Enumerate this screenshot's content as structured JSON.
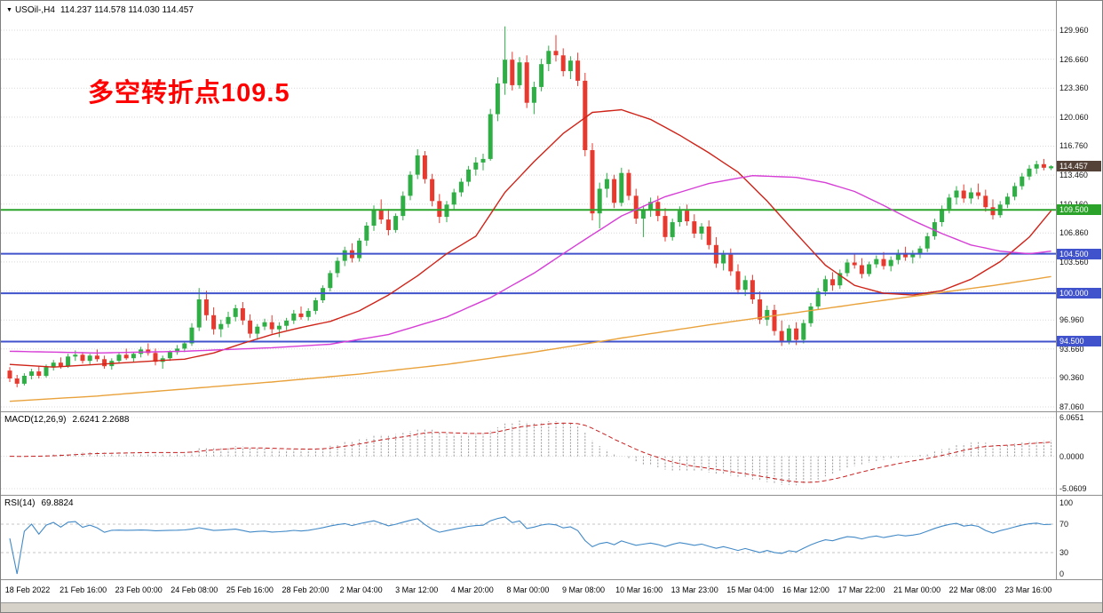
{
  "colors": {
    "up": "#2eae45",
    "down": "#e8392f",
    "ma_fast": "#cf2318",
    "ma_mid": "#d63ed6",
    "ma_slow": "#e9a23b",
    "level_green": "#2ba32b",
    "level_blue": "#4053cc",
    "grid": "#d8d8d8",
    "macd_hist": "#9a9a9a",
    "macd_signal": "#c81d1d",
    "rsi_line": "#4189c7",
    "rsi_levels": "#c4c4c4",
    "current_badge_bg": "#544238",
    "annotation": "#fe0000"
  },
  "window": {
    "dropdown_icon": "▼",
    "symbol_period": "USOil-,H4",
    "ohlc": "114.237 114.578 114.030 114.457"
  },
  "annotation": {
    "text": "多空转折点109.5"
  },
  "indicators": {
    "macd": {
      "label": "MACD(12,26,9)",
      "values": "2.6241 2.2688",
      "fast": 12,
      "slow": 26,
      "signal": 9,
      "axis_labels": [
        "6.0651",
        "0.0000",
        "-5.0609"
      ],
      "axis_values": [
        6.0651,
        0,
        -5.0609
      ]
    },
    "rsi": {
      "label": "RSI(14)",
      "value": "69.8824",
      "period": 14,
      "axis_labels": [
        "100",
        "70",
        "30",
        "0"
      ],
      "axis_values": [
        100,
        70,
        30,
        0
      ],
      "levels": [
        70,
        30
      ]
    }
  },
  "price_axis": {
    "grid_values": [
      87.06,
      90.36,
      93.66,
      96.96,
      100.26,
      103.56,
      106.86,
      110.16,
      113.46,
      116.76,
      120.06,
      123.36,
      126.66,
      129.96
    ],
    "current_price": "114.457"
  },
  "levels": [
    {
      "value": 109.5,
      "label": "109.500",
      "color_key": "level_green"
    },
    {
      "value": 104.5,
      "label": "104.500",
      "color_key": "level_blue"
    },
    {
      "value": 100.0,
      "label": "100.000",
      "color_key": "level_blue"
    },
    {
      "value": 94.5,
      "label": "94.500",
      "color_key": "level_blue"
    }
  ],
  "time_axis": {
    "labels": [
      "18 Feb 2022",
      "21 Feb 16:00",
      "23 Feb 00:00",
      "24 Feb 08:00",
      "25 Feb 16:00",
      "28 Feb 20:00",
      "2 Mar 04:00",
      "3 Mar 12:00",
      "4 Mar 20:00",
      "8 Mar 00:00",
      "9 Mar 08:00",
      "10 Mar 16:00",
      "13 Mar 23:00",
      "15 Mar 04:00",
      "16 Mar 12:00",
      "17 Mar 22:00",
      "21 Mar 00:00",
      "22 Mar 08:00",
      "23 Mar 16:00"
    ]
  },
  "chart_data": {
    "type": "candlestick",
    "symbol": "USOil-",
    "timeframe": "H4",
    "title": "USOil-,H4",
    "y_range": [
      86.5,
      133.3
    ],
    "macd_range": [
      -5.0609,
      6.0651
    ],
    "rsi_range": [
      0,
      100
    ],
    "horizontal_levels": [
      109.5,
      104.5,
      100.0,
      94.5
    ],
    "candles": [
      [
        91.2,
        91.6,
        89.9,
        90.3
      ],
      [
        90.3,
        90.7,
        89.3,
        89.7
      ],
      [
        89.7,
        90.9,
        89.5,
        90.6
      ],
      [
        90.6,
        91.4,
        90.2,
        91.1
      ],
      [
        91.1,
        91.7,
        90.3,
        90.6
      ],
      [
        90.6,
        91.9,
        90.4,
        91.6
      ],
      [
        91.6,
        92.4,
        91.2,
        92.1
      ],
      [
        92.1,
        92.7,
        91.4,
        91.7
      ],
      [
        91.7,
        93.1,
        91.5,
        92.8
      ],
      [
        92.8,
        93.5,
        92.3,
        93.0
      ],
      [
        93.0,
        93.3,
        92.0,
        92.3
      ],
      [
        92.3,
        93.1,
        91.9,
        92.9
      ],
      [
        92.9,
        93.6,
        92.2,
        92.5
      ],
      [
        92.5,
        92.9,
        91.4,
        91.7
      ],
      [
        91.7,
        92.6,
        91.3,
        92.3
      ],
      [
        92.3,
        93.2,
        92.0,
        93.0
      ],
      [
        93.0,
        93.7,
        92.4,
        92.6
      ],
      [
        92.6,
        93.3,
        92.2,
        93.1
      ],
      [
        93.1,
        93.9,
        92.7,
        93.6
      ],
      [
        93.6,
        94.3,
        92.9,
        93.2
      ],
      [
        93.2,
        93.7,
        91.8,
        92.2
      ],
      [
        92.2,
        92.9,
        91.4,
        92.6
      ],
      [
        92.6,
        93.5,
        92.3,
        93.3
      ],
      [
        93.3,
        94.1,
        93.0,
        93.7
      ],
      [
        93.7,
        94.6,
        93.3,
        94.3
      ],
      [
        94.3,
        96.6,
        94.0,
        96.1
      ],
      [
        96.1,
        100.6,
        95.7,
        99.3
      ],
      [
        99.3,
        100.3,
        96.9,
        97.5
      ],
      [
        97.5,
        98.4,
        95.3,
        95.9
      ],
      [
        95.9,
        97.0,
        95.0,
        96.5
      ],
      [
        96.5,
        97.9,
        96.1,
        97.3
      ],
      [
        97.3,
        98.7,
        96.8,
        98.3
      ],
      [
        98.3,
        99.0,
        96.4,
        96.9
      ],
      [
        96.9,
        97.6,
        94.9,
        95.4
      ],
      [
        95.4,
        96.5,
        94.7,
        96.2
      ],
      [
        96.2,
        97.1,
        95.8,
        96.7
      ],
      [
        96.7,
        97.5,
        95.4,
        95.9
      ],
      [
        95.9,
        96.7,
        95.0,
        96.3
      ],
      [
        96.3,
        97.2,
        95.8,
        96.9
      ],
      [
        96.9,
        98.1,
        96.5,
        97.7
      ],
      [
        97.7,
        98.5,
        97.0,
        97.3
      ],
      [
        97.3,
        98.3,
        96.9,
        98.0
      ],
      [
        98.0,
        99.5,
        97.6,
        99.2
      ],
      [
        99.2,
        100.9,
        98.9,
        100.6
      ],
      [
        100.6,
        102.6,
        100.2,
        102.3
      ],
      [
        102.3,
        104.1,
        101.8,
        103.7
      ],
      [
        103.7,
        105.3,
        103.1,
        104.9
      ],
      [
        104.9,
        105.7,
        103.5,
        104.0
      ],
      [
        104.0,
        106.3,
        103.6,
        106.0
      ],
      [
        106.0,
        108.1,
        105.4,
        107.7
      ],
      [
        107.7,
        110.0,
        107.1,
        109.5
      ],
      [
        109.5,
        110.7,
        107.9,
        108.4
      ],
      [
        108.4,
        109.6,
        106.6,
        107.2
      ],
      [
        107.2,
        109.1,
        106.9,
        108.8
      ],
      [
        108.8,
        111.6,
        108.3,
        111.1
      ],
      [
        111.1,
        113.9,
        110.6,
        113.5
      ],
      [
        113.5,
        116.4,
        113.0,
        115.7
      ],
      [
        115.7,
        116.2,
        112.5,
        113.0
      ],
      [
        113.0,
        113.6,
        109.9,
        110.5
      ],
      [
        110.5,
        111.3,
        108.0,
        108.7
      ],
      [
        108.7,
        110.5,
        108.1,
        110.1
      ],
      [
        110.1,
        111.9,
        109.5,
        111.5
      ],
      [
        111.5,
        113.1,
        111.0,
        112.7
      ],
      [
        112.7,
        114.5,
        112.2,
        114.1
      ],
      [
        114.1,
        115.5,
        113.4,
        114.9
      ],
      [
        114.9,
        115.9,
        114.0,
        115.3
      ],
      [
        115.3,
        121.0,
        115.1,
        120.4
      ],
      [
        120.4,
        124.6,
        119.6,
        123.9
      ],
      [
        123.9,
        130.4,
        122.6,
        126.6
      ],
      [
        126.6,
        127.5,
        123.1,
        123.7
      ],
      [
        123.7,
        126.9,
        123.3,
        126.3
      ],
      [
        126.3,
        127.1,
        121.1,
        121.7
      ],
      [
        121.7,
        124.1,
        120.4,
        123.5
      ],
      [
        123.5,
        126.7,
        123.0,
        126.1
      ],
      [
        126.1,
        128.2,
        125.3,
        127.6
      ],
      [
        127.6,
        129.4,
        126.4,
        127.1
      ],
      [
        127.1,
        127.9,
        124.7,
        125.3
      ],
      [
        125.3,
        127.0,
        124.4,
        126.5
      ],
      [
        126.5,
        127.4,
        123.6,
        124.2
      ],
      [
        124.2,
        125.1,
        115.6,
        116.3
      ],
      [
        116.3,
        117.1,
        108.3,
        109.1
      ],
      [
        109.1,
        112.6,
        107.4,
        111.9
      ],
      [
        111.9,
        113.7,
        110.9,
        113.0
      ],
      [
        113.0,
        113.5,
        109.7,
        110.3
      ],
      [
        110.3,
        114.3,
        109.9,
        113.7
      ],
      [
        113.7,
        114.1,
        110.6,
        111.1
      ],
      [
        111.1,
        111.9,
        107.9,
        108.5
      ],
      [
        108.5,
        110.0,
        106.4,
        109.5
      ],
      [
        109.5,
        110.9,
        108.7,
        110.4
      ],
      [
        110.4,
        111.1,
        108.2,
        108.8
      ],
      [
        108.8,
        109.7,
        105.9,
        106.4
      ],
      [
        106.4,
        108.5,
        106.0,
        108.1
      ],
      [
        108.1,
        109.9,
        107.6,
        109.4
      ],
      [
        109.4,
        110.1,
        107.7,
        108.2
      ],
      [
        108.2,
        109.0,
        106.3,
        106.8
      ],
      [
        106.8,
        108.0,
        106.1,
        107.6
      ],
      [
        107.6,
        108.3,
        105.0,
        105.5
      ],
      [
        105.5,
        106.4,
        102.9,
        103.4
      ],
      [
        103.4,
        104.9,
        102.6,
        104.4
      ],
      [
        104.4,
        105.1,
        102.0,
        102.5
      ],
      [
        102.5,
        103.3,
        99.9,
        100.4
      ],
      [
        100.4,
        102.0,
        99.7,
        101.5
      ],
      [
        101.5,
        102.1,
        98.8,
        99.3
      ],
      [
        99.3,
        100.2,
        96.5,
        97.0
      ],
      [
        97.0,
        98.6,
        96.3,
        98.1
      ],
      [
        98.1,
        98.7,
        95.2,
        95.7
      ],
      [
        95.7,
        96.9,
        94.0,
        94.6
      ],
      [
        94.6,
        96.4,
        94.2,
        96.0
      ],
      [
        96.0,
        96.7,
        94.1,
        94.7
      ],
      [
        94.7,
        97.0,
        94.3,
        96.6
      ],
      [
        96.6,
        98.9,
        96.2,
        98.5
      ],
      [
        98.5,
        100.6,
        98.1,
        100.2
      ],
      [
        100.2,
        102.0,
        99.7,
        101.6
      ],
      [
        101.6,
        102.4,
        100.3,
        100.9
      ],
      [
        100.9,
        102.7,
        100.5,
        102.3
      ],
      [
        102.3,
        103.9,
        101.9,
        103.5
      ],
      [
        103.5,
        104.5,
        102.8,
        103.2
      ],
      [
        103.2,
        104.0,
        101.7,
        102.2
      ],
      [
        102.2,
        103.6,
        101.9,
        103.3
      ],
      [
        103.3,
        104.3,
        102.9,
        103.9
      ],
      [
        103.9,
        104.7,
        102.7,
        103.1
      ],
      [
        103.1,
        104.2,
        102.5,
        103.8
      ],
      [
        103.8,
        105.0,
        103.3,
        104.6
      ],
      [
        104.6,
        105.3,
        103.7,
        104.1
      ],
      [
        104.1,
        104.9,
        103.4,
        104.5
      ],
      [
        104.5,
        105.4,
        104.0,
        105.1
      ],
      [
        105.1,
        106.9,
        104.7,
        106.5
      ],
      [
        106.5,
        108.5,
        106.1,
        108.1
      ],
      [
        108.1,
        110.0,
        107.6,
        109.6
      ],
      [
        109.6,
        111.3,
        109.1,
        110.9
      ],
      [
        110.9,
        112.2,
        110.1,
        111.7
      ],
      [
        111.7,
        112.4,
        110.3,
        110.8
      ],
      [
        110.8,
        112.0,
        110.2,
        111.5
      ],
      [
        111.5,
        112.5,
        110.7,
        111.1
      ],
      [
        111.1,
        111.8,
        109.3,
        109.8
      ],
      [
        109.8,
        110.7,
        108.4,
        108.9
      ],
      [
        108.9,
        110.5,
        108.6,
        110.1
      ],
      [
        110.1,
        111.4,
        109.7,
        111.0
      ],
      [
        111.0,
        112.6,
        110.6,
        112.2
      ],
      [
        112.2,
        113.7,
        111.8,
        113.3
      ],
      [
        113.3,
        114.6,
        112.9,
        114.2
      ],
      [
        114.2,
        115.1,
        113.6,
        114.7
      ],
      [
        114.7,
        115.3,
        114.0,
        114.3
      ],
      [
        114.237,
        114.578,
        114.03,
        114.457
      ]
    ],
    "moving_averages": [
      {
        "name": "fast-ma",
        "color_key": "ma_fast",
        "points": [
          [
            0,
            91.9
          ],
          [
            6,
            91.6
          ],
          [
            12,
            91.9
          ],
          [
            18,
            92.2
          ],
          [
            24,
            92.5
          ],
          [
            28,
            93.2
          ],
          [
            32,
            94.3
          ],
          [
            36,
            95.3
          ],
          [
            40,
            96.1
          ],
          [
            44,
            96.8
          ],
          [
            48,
            98.0
          ],
          [
            52,
            99.8
          ],
          [
            56,
            102.0
          ],
          [
            60,
            104.5
          ],
          [
            64,
            106.5
          ],
          [
            68,
            111.5
          ],
          [
            72,
            115.0
          ],
          [
            76,
            118.2
          ],
          [
            80,
            120.6
          ],
          [
            84,
            120.9
          ],
          [
            88,
            119.8
          ],
          [
            92,
            118.0
          ],
          [
            96,
            116.0
          ],
          [
            100,
            113.8
          ],
          [
            104,
            110.5
          ],
          [
            108,
            106.8
          ],
          [
            112,
            103.2
          ],
          [
            116,
            100.9
          ],
          [
            120,
            100.0
          ],
          [
            124,
            99.8
          ],
          [
            128,
            100.3
          ],
          [
            132,
            101.6
          ],
          [
            136,
            103.6
          ],
          [
            140,
            106.4
          ],
          [
            143,
            109.4
          ]
        ]
      },
      {
        "name": "mid-ma",
        "color_key": "ma_mid",
        "points": [
          [
            0,
            93.4
          ],
          [
            12,
            93.2
          ],
          [
            24,
            93.4
          ],
          [
            36,
            93.8
          ],
          [
            44,
            94.2
          ],
          [
            52,
            95.3
          ],
          [
            60,
            97.3
          ],
          [
            66,
            99.5
          ],
          [
            72,
            102.3
          ],
          [
            78,
            105.6
          ],
          [
            84,
            108.8
          ],
          [
            90,
            111.0
          ],
          [
            96,
            112.5
          ],
          [
            102,
            113.4
          ],
          [
            108,
            113.2
          ],
          [
            112,
            112.6
          ],
          [
            116,
            111.6
          ],
          [
            120,
            110.0
          ],
          [
            124,
            108.3
          ],
          [
            128,
            106.8
          ],
          [
            132,
            105.5
          ],
          [
            136,
            104.8
          ],
          [
            140,
            104.5
          ],
          [
            143,
            104.8
          ]
        ]
      },
      {
        "name": "slow-ma",
        "color_key": "ma_slow",
        "points": [
          [
            0,
            87.7
          ],
          [
            12,
            88.3
          ],
          [
            24,
            89.1
          ],
          [
            36,
            89.9
          ],
          [
            48,
            90.8
          ],
          [
            60,
            91.9
          ],
          [
            72,
            93.3
          ],
          [
            84,
            94.9
          ],
          [
            96,
            96.4
          ],
          [
            108,
            97.8
          ],
          [
            120,
            99.2
          ],
          [
            128,
            100.1
          ],
          [
            136,
            101.0
          ],
          [
            143,
            101.9
          ]
        ]
      }
    ]
  }
}
